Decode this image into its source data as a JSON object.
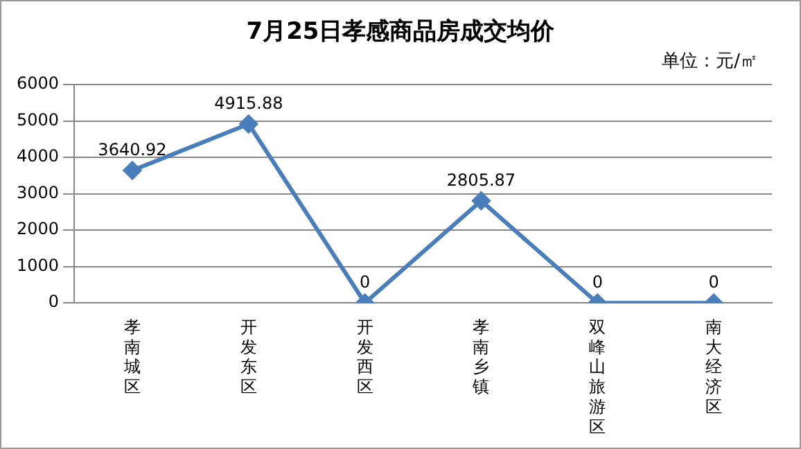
{
  "chart_data": {
    "type": "line",
    "title": "7月25日孝感商品房成交均价",
    "annotations": [
      "单位：元/㎡"
    ],
    "categories": [
      "孝南城区",
      "开发东区",
      "开发西区",
      "孝南乡镇",
      "双峰山旅游区",
      "南大经济区"
    ],
    "series": [
      {
        "color": "#4a7ebb",
        "values": [
          3640.92,
          4915.88,
          0,
          2805.87,
          0,
          0
        ]
      }
    ],
    "ylim": [
      0,
      6000
    ],
    "yticks": [
      0,
      1000,
      2000,
      3000,
      4000,
      5000,
      6000
    ],
    "grid": "y",
    "marker": "diamond",
    "line_style": "solid",
    "data_labels": true,
    "legend": false
  }
}
